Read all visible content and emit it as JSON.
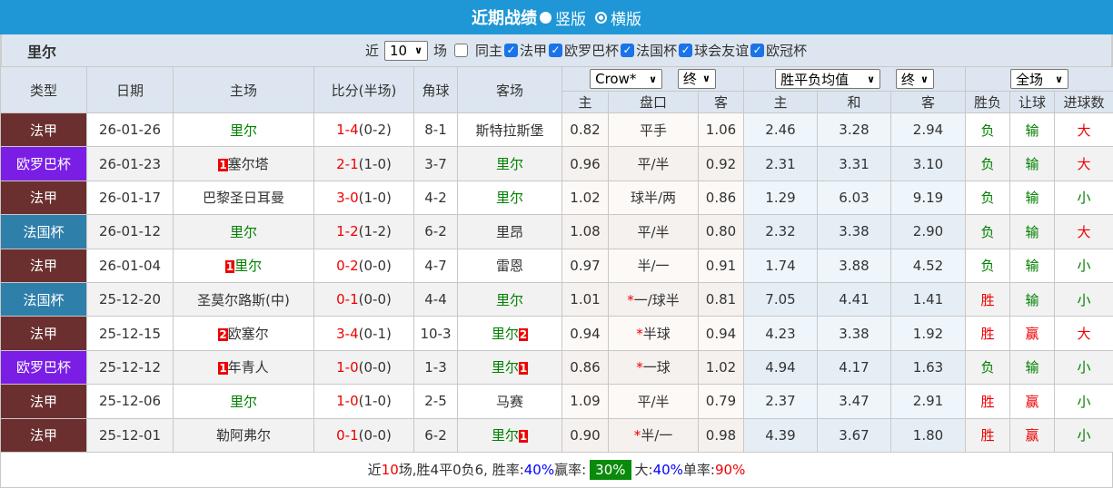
{
  "header": {
    "title": "近期战绩",
    "radio_vertical": "竖版",
    "radio_horizontal": "横版",
    "selected": "vertical"
  },
  "team": "里尔",
  "filters": {
    "near_label": "近",
    "count": "10",
    "games_label": "场",
    "same_home_label": "同主",
    "same_home_checked": false,
    "leagues": [
      {
        "label": "法甲",
        "checked": true
      },
      {
        "label": "欧罗巴杯",
        "checked": true
      },
      {
        "label": "法国杯",
        "checked": true
      },
      {
        "label": "球会友谊",
        "checked": true
      },
      {
        "label": "欧冠杯",
        "checked": true
      }
    ]
  },
  "columns": {
    "type": "类型",
    "date": "日期",
    "home": "主场",
    "score": "比分(半场)",
    "corner": "角球",
    "away": "客场",
    "asian_company": "Crow*",
    "asian_time": "终",
    "euro_type": "胜平负均值",
    "euro_time": "终",
    "period": "全场",
    "asian_home": "主",
    "handicap": "盘口",
    "asian_away": "客",
    "euro_home": "主",
    "euro_draw": "和",
    "euro_away": "客",
    "result": "胜负",
    "handicap_result": "让球",
    "goals": "进球数"
  },
  "colors": {
    "法甲": "#6b2f2f",
    "欧罗巴杯": "#7a1ee6",
    "法国杯": "#2f7fab",
    "win": "#e00",
    "lose": "#008000",
    "team": "#008000"
  },
  "matches": [
    {
      "type": "法甲",
      "date": "26-01-26",
      "home": "里尔",
      "home_rc": "",
      "away": "斯特拉斯堡",
      "away_rc": "",
      "ft": "1-4",
      "ht": "(0-2)",
      "corner": "8-1",
      "ah": "0.82",
      "hcp": "平手",
      "hcp_star": "",
      "aa": "1.06",
      "eh": "2.46",
      "ed": "3.28",
      "ea": "2.94",
      "res": "负",
      "hres": "输",
      "goals": "大",
      "team_side": "home"
    },
    {
      "type": "欧罗巴杯",
      "date": "26-01-23",
      "home": "塞尔塔",
      "home_rc": "1",
      "away": "里尔",
      "away_rc": "",
      "ft": "2-1",
      "ht": "(1-0)",
      "corner": "3-7",
      "ah": "0.96",
      "hcp": "平/半",
      "hcp_star": "",
      "aa": "0.92",
      "eh": "2.31",
      "ed": "3.31",
      "ea": "3.10",
      "res": "负",
      "hres": "输",
      "goals": "大",
      "team_side": "away"
    },
    {
      "type": "法甲",
      "date": "26-01-17",
      "home": "巴黎圣日耳曼",
      "home_rc": "",
      "away": "里尔",
      "away_rc": "",
      "ft": "3-0",
      "ht": "(1-0)",
      "corner": "4-2",
      "ah": "1.02",
      "hcp": "球半/两",
      "hcp_star": "",
      "aa": "0.86",
      "eh": "1.29",
      "ed": "6.03",
      "ea": "9.19",
      "res": "负",
      "hres": "输",
      "goals": "小",
      "team_side": "away"
    },
    {
      "type": "法国杯",
      "date": "26-01-12",
      "home": "里尔",
      "home_rc": "",
      "away": "里昂",
      "away_rc": "",
      "ft": "1-2",
      "ht": "(1-2)",
      "corner": "6-2",
      "ah": "1.08",
      "hcp": "平/半",
      "hcp_star": "",
      "aa": "0.80",
      "eh": "2.32",
      "ed": "3.38",
      "ea": "2.90",
      "res": "负",
      "hres": "输",
      "goals": "大",
      "team_side": "home"
    },
    {
      "type": "法甲",
      "date": "26-01-04",
      "home": "里尔",
      "home_rc": "1",
      "away": "雷恩",
      "away_rc": "",
      "ft": "0-2",
      "ht": "(0-0)",
      "corner": "4-7",
      "ah": "0.97",
      "hcp": "半/一",
      "hcp_star": "",
      "aa": "0.91",
      "eh": "1.74",
      "ed": "3.88",
      "ea": "4.52",
      "res": "负",
      "hres": "输",
      "goals": "小",
      "team_side": "home"
    },
    {
      "type": "法国杯",
      "date": "25-12-20",
      "home": "圣莫尔路斯(中)",
      "home_rc": "",
      "away": "里尔",
      "away_rc": "",
      "ft": "0-1",
      "ht": "(0-0)",
      "corner": "4-4",
      "ah": "1.01",
      "hcp": "一/球半",
      "hcp_star": "*",
      "aa": "0.81",
      "eh": "7.05",
      "ed": "4.41",
      "ea": "1.41",
      "res": "胜",
      "hres": "输",
      "goals": "小",
      "team_side": "away"
    },
    {
      "type": "法甲",
      "date": "25-12-15",
      "home": "欧塞尔",
      "home_rc": "2",
      "away": "里尔",
      "away_rc": "2",
      "ft": "3-4",
      "ht": "(0-1)",
      "corner": "10-3",
      "ah": "0.94",
      "hcp": "半球",
      "hcp_star": "*",
      "aa": "0.94",
      "eh": "4.23",
      "ed": "3.38",
      "ea": "1.92",
      "res": "胜",
      "hres": "赢",
      "goals": "大",
      "team_side": "away"
    },
    {
      "type": "欧罗巴杯",
      "date": "25-12-12",
      "home": "年青人",
      "home_rc": "1",
      "away": "里尔",
      "away_rc": "1",
      "ft": "1-0",
      "ht": "(0-0)",
      "corner": "1-3",
      "ah": "0.86",
      "hcp": "一球",
      "hcp_star": "*",
      "aa": "1.02",
      "eh": "4.94",
      "ed": "4.17",
      "ea": "1.63",
      "res": "负",
      "hres": "输",
      "goals": "小",
      "team_side": "away"
    },
    {
      "type": "法甲",
      "date": "25-12-06",
      "home": "里尔",
      "home_rc": "",
      "away": "马赛",
      "away_rc": "",
      "ft": "1-0",
      "ht": "(1-0)",
      "corner": "2-5",
      "ah": "1.09",
      "hcp": "平/半",
      "hcp_star": "",
      "aa": "0.79",
      "eh": "2.37",
      "ed": "3.47",
      "ea": "2.91",
      "res": "胜",
      "hres": "赢",
      "goals": "小",
      "team_side": "home"
    },
    {
      "type": "法甲",
      "date": "25-12-01",
      "home": "勒阿弗尔",
      "home_rc": "",
      "away": "里尔",
      "away_rc": "1",
      "ft": "0-1",
      "ht": "(0-0)",
      "corner": "6-2",
      "ah": "0.90",
      "hcp": "半/一",
      "hcp_star": "*",
      "aa": "0.98",
      "eh": "4.39",
      "ed": "3.67",
      "ea": "1.80",
      "res": "胜",
      "hres": "赢",
      "goals": "小",
      "team_side": "away"
    }
  ],
  "summary": {
    "prefix": "近",
    "count": "10",
    "mid": "场,胜4平0负6, 胜率:",
    "win_rate": "40%",
    "handicap_label": " 赢率:",
    "handicap_rate": "30%",
    "big_label": "大:",
    "big_rate": "40%",
    "odd_label": " 单率:",
    "odd_rate": "90%"
  }
}
